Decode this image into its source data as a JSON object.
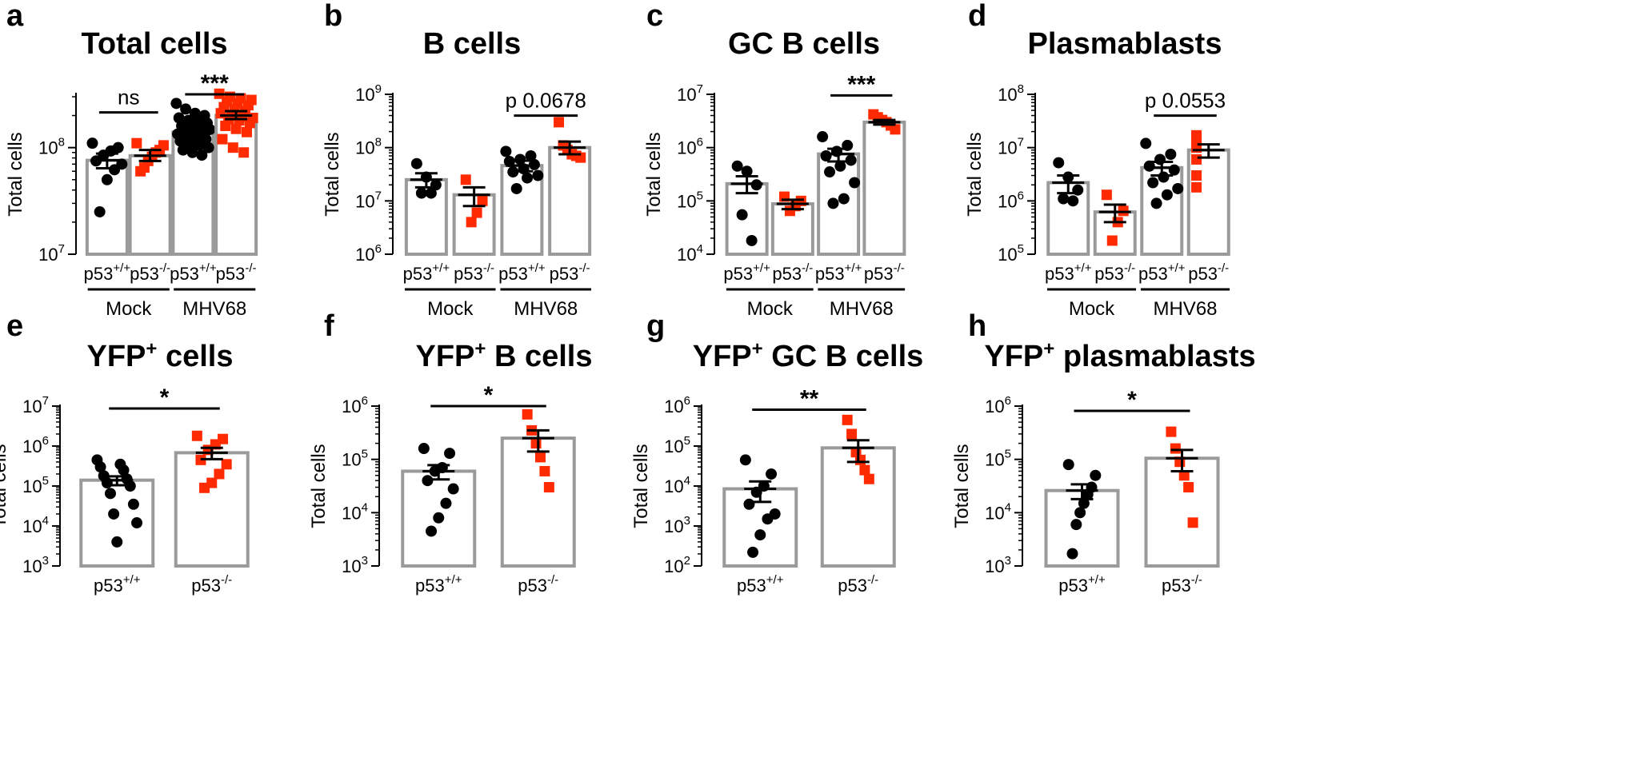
{
  "figure": {
    "x_label": "p53",
    "y_label": "Total cells"
  },
  "chart_data": [
    {
      "panel_letter": "a",
      "type": "bar",
      "title": "Total cells",
      "title_superscript": "",
      "title_rest": "",
      "ylabel": "Total cells",
      "yscale": "log",
      "ylim_exp": [
        7,
        8.5
      ],
      "y_ticks": [
        {
          "base": "10",
          "exp": "7",
          "value_exp": 7
        },
        {
          "base": "10",
          "exp": "8",
          "value_exp": 8
        }
      ],
      "categories": [
        {
          "base": "p53",
          "sup": "+/+",
          "group": "Mock",
          "color": "#000000",
          "shape": "circle",
          "mean": 76000000,
          "sem_low": 64000000,
          "sem_high": 88000000,
          "points": [
            110000000,
            100000000,
            93000000,
            85000000,
            75000000,
            70000000,
            62000000,
            50000000,
            25000000
          ]
        },
        {
          "base": "p53",
          "sup": "-/-",
          "group": "Mock",
          "color": "#ff2a00",
          "shape": "square",
          "mean": 84000000,
          "sem_low": 75000000,
          "sem_high": 95000000,
          "points": [
            110000000,
            105000000,
            95000000,
            90000000,
            82000000,
            75000000,
            65000000,
            60000000
          ]
        },
        {
          "base": "p53",
          "sup": "+/+",
          "group": "MHV68",
          "color": "#000000",
          "shape": "circle",
          "mean": 140000000,
          "sem_low": 130000000,
          "sem_high": 152000000,
          "points": [
            260000000,
            230000000,
            210000000,
            200000000,
            190000000,
            180000000,
            175000000,
            170000000,
            160000000,
            155000000,
            150000000,
            148000000,
            145000000,
            140000000,
            137000000,
            134000000,
            130000000,
            125000000,
            120000000,
            115000000,
            110000000,
            105000000,
            100000000,
            95000000,
            90000000,
            85000000
          ]
        },
        {
          "base": "p53",
          "sup": "-/-",
          "group": "MHV68",
          "color": "#ff2a00",
          "shape": "square",
          "mean": 200000000,
          "sem_low": 185000000,
          "sem_high": 220000000,
          "points": [
            320000000,
            300000000,
            290000000,
            280000000,
            270000000,
            260000000,
            250000000,
            240000000,
            230000000,
            220000000,
            210000000,
            200000000,
            195000000,
            190000000,
            185000000,
            180000000,
            170000000,
            160000000,
            150000000,
            140000000,
            120000000,
            100000000,
            90000000
          ]
        }
      ],
      "groups": [
        {
          "label": "Mock",
          "from": 0,
          "to": 1
        },
        {
          "label": "MHV68",
          "from": 2,
          "to": 3
        }
      ],
      "comparisons": [
        {
          "label": "ns",
          "from": 0,
          "to": 1,
          "level_exp": 8.33
        },
        {
          "label": "***",
          "from": 2,
          "to": 3,
          "level_exp": 8.5
        }
      ]
    },
    {
      "panel_letter": "b",
      "type": "bar",
      "title": "B cells",
      "title_superscript": "",
      "title_rest": "",
      "ylabel": "Total cells",
      "yscale": "log",
      "ylim_exp": [
        6,
        9
      ],
      "y_ticks": [
        {
          "base": "10",
          "exp": "6",
          "value_exp": 6
        },
        {
          "base": "10",
          "exp": "7",
          "value_exp": 7
        },
        {
          "base": "10",
          "exp": "8",
          "value_exp": 8
        },
        {
          "base": "10",
          "exp": "9",
          "value_exp": 9
        }
      ],
      "categories": [
        {
          "base": "p53",
          "sup": "+/+",
          "group": "Mock",
          "color": "#000000",
          "shape": "circle",
          "mean": 25000000,
          "sem_low": 18000000,
          "sem_high": 33000000,
          "points": [
            50000000,
            28000000,
            20000000,
            14000000,
            14000000
          ]
        },
        {
          "base": "p53",
          "sup": "-/-",
          "group": "Mock",
          "color": "#ff2a00",
          "shape": "square",
          "mean": 13000000,
          "sem_low": 8000000,
          "sem_high": 18000000,
          "points": [
            25000000,
            10000000,
            6000000,
            4000000
          ]
        },
        {
          "base": "p53",
          "sup": "+/+",
          "group": "MHV68",
          "color": "#000000",
          "shape": "circle",
          "mean": 46000000,
          "sem_low": 36000000,
          "sem_high": 57000000,
          "points": [
            85000000,
            70000000,
            60000000,
            55000000,
            48000000,
            40000000,
            35000000,
            30000000,
            27000000,
            17000000
          ]
        },
        {
          "base": "p53",
          "sup": "-/-",
          "group": "MHV68",
          "color": "#ff2a00",
          "shape": "square",
          "mean": 100000000,
          "sem_low": 75000000,
          "sem_high": 130000000,
          "points": [
            300000000,
            110000000,
            90000000,
            75000000,
            70000000,
            65000000
          ]
        }
      ],
      "groups": [
        {
          "label": "Mock",
          "from": 0,
          "to": 1
        },
        {
          "label": "MHV68",
          "from": 2,
          "to": 3
        }
      ],
      "comparisons": [
        {
          "label": "p 0.0678",
          "from": 2,
          "to": 3,
          "level_exp": 8.6
        }
      ]
    },
    {
      "panel_letter": "c",
      "type": "bar",
      "title": "GC B cells",
      "title_superscript": "",
      "title_rest": "",
      "ylabel": "Total cells",
      "yscale": "log",
      "ylim_exp": [
        4,
        7
      ],
      "y_ticks": [
        {
          "base": "10",
          "exp": "4",
          "value_exp": 4
        },
        {
          "base": "10",
          "exp": "5",
          "value_exp": 5
        },
        {
          "base": "10",
          "exp": "6",
          "value_exp": 6
        },
        {
          "base": "10",
          "exp": "7",
          "value_exp": 7
        }
      ],
      "categories": [
        {
          "base": "p53",
          "sup": "+/+",
          "group": "Mock",
          "color": "#000000",
          "shape": "circle",
          "mean": 210000,
          "sem_low": 140000,
          "sem_high": 290000,
          "points": [
            450000,
            360000,
            200000,
            55000,
            18000
          ]
        },
        {
          "base": "p53",
          "sup": "-/-",
          "group": "Mock",
          "color": "#ff2a00",
          "shape": "square",
          "mean": 88000,
          "sem_low": 70000,
          "sem_high": 105000,
          "points": [
            120000,
            100000,
            80000,
            65000
          ]
        },
        {
          "base": "p53",
          "sup": "+/+",
          "group": "MHV68",
          "color": "#000000",
          "shape": "circle",
          "mean": 760000,
          "sem_low": 550000,
          "sem_high": 950000,
          "points": [
            1600000,
            1100000,
            850000,
            700000,
            580000,
            450000,
            350000,
            220000,
            110000,
            90000
          ]
        },
        {
          "base": "p53",
          "sup": "-/-",
          "group": "MHV68",
          "color": "#ff2a00",
          "shape": "square",
          "mean": 3000000,
          "sem_low": 2700000,
          "sem_high": 3300000,
          "points": [
            4200000,
            3700000,
            3300000,
            3000000,
            2600000,
            2200000
          ]
        }
      ],
      "groups": [
        {
          "label": "Mock",
          "from": 0,
          "to": 1
        },
        {
          "label": "MHV68",
          "from": 2,
          "to": 3
        }
      ],
      "comparisons": [
        {
          "label": "***",
          "from": 2,
          "to": 3,
          "level_exp": 6.98
        }
      ]
    },
    {
      "panel_letter": "d",
      "type": "bar",
      "title": "Plasmablasts",
      "title_superscript": "",
      "title_rest": "",
      "ylabel": "Total cells",
      "yscale": "log",
      "ylim_exp": [
        5,
        8
      ],
      "y_ticks": [
        {
          "base": "10",
          "exp": "5",
          "value_exp": 5
        },
        {
          "base": "10",
          "exp": "6",
          "value_exp": 6
        },
        {
          "base": "10",
          "exp": "7",
          "value_exp": 7
        },
        {
          "base": "10",
          "exp": "8",
          "value_exp": 8
        }
      ],
      "categories": [
        {
          "base": "p53",
          "sup": "+/+",
          "group": "Mock",
          "color": "#000000",
          "shape": "circle",
          "mean": 2200000,
          "sem_low": 1400000,
          "sem_high": 3000000,
          "points": [
            5200000,
            2800000,
            1600000,
            1100000,
            1000000
          ]
        },
        {
          "base": "p53",
          "sup": "-/-",
          "group": "Mock",
          "color": "#ff2a00",
          "shape": "square",
          "mean": 620000,
          "sem_low": 400000,
          "sem_high": 850000,
          "points": [
            1300000,
            650000,
            400000,
            180000
          ]
        },
        {
          "base": "p53",
          "sup": "+/+",
          "group": "MHV68",
          "color": "#000000",
          "shape": "circle",
          "mean": 4200000,
          "sem_low": 3000000,
          "sem_high": 5400000,
          "points": [
            12000000,
            7500000,
            6000000,
            4500000,
            3800000,
            2800000,
            2200000,
            1700000,
            1300000,
            900000
          ]
        },
        {
          "base": "p53",
          "sup": "-/-",
          "group": "MHV68",
          "color": "#ff2a00",
          "shape": "square",
          "mean": 9000000,
          "sem_low": 6500000,
          "sem_high": 11500000,
          "points": [
            17000000,
            15000000,
            12000000,
            10000000,
            6000000,
            3000000,
            1800000
          ]
        }
      ],
      "groups": [
        {
          "label": "Mock",
          "from": 0,
          "to": 1
        },
        {
          "label": "MHV68",
          "from": 2,
          "to": 3
        }
      ],
      "comparisons": [
        {
          "label": "p 0.0553",
          "from": 2,
          "to": 3,
          "level_exp": 7.6
        }
      ]
    },
    {
      "panel_letter": "e",
      "type": "bar",
      "title": "YFP",
      "title_superscript": "+",
      "title_rest": " cells",
      "ylabel": "Total cells",
      "yscale": "log",
      "ylim_exp": [
        3,
        7
      ],
      "y_ticks": [
        {
          "base": "10",
          "exp": "3",
          "value_exp": 3
        },
        {
          "base": "10",
          "exp": "4",
          "value_exp": 4
        },
        {
          "base": "10",
          "exp": "5",
          "value_exp": 5
        },
        {
          "base": "10",
          "exp": "6",
          "value_exp": 6
        },
        {
          "base": "10",
          "exp": "7",
          "value_exp": 7
        }
      ],
      "categories": [
        {
          "base": "p53",
          "sup": "+/+",
          "group": "",
          "color": "#000000",
          "shape": "circle",
          "mean": 140000,
          "sem_low": 105000,
          "sem_high": 175000,
          "points": [
            450000,
            350000,
            300000,
            250000,
            180000,
            150000,
            120000,
            100000,
            65000,
            35000,
            20000,
            12000,
            4000
          ]
        },
        {
          "base": "p53",
          "sup": "-/-",
          "group": "",
          "color": "#ff2a00",
          "shape": "square",
          "mean": 680000,
          "sem_low": 470000,
          "sem_high": 900000,
          "points": [
            1800000,
            1500000,
            1100000,
            800000,
            450000,
            350000,
            200000,
            120000,
            90000
          ]
        }
      ],
      "groups": [],
      "comparisons": [
        {
          "label": "*",
          "from": 0,
          "to": 1,
          "level_exp": 6.94
        }
      ]
    },
    {
      "panel_letter": "f",
      "type": "bar",
      "title": "YFP",
      "title_superscript": "+",
      "title_rest": " B cells",
      "ylabel": "Total cells",
      "yscale": "log",
      "ylim_exp": [
        3,
        6
      ],
      "y_ticks": [
        {
          "base": "10",
          "exp": "3",
          "value_exp": 3
        },
        {
          "base": "10",
          "exp": "4",
          "value_exp": 4
        },
        {
          "base": "10",
          "exp": "5",
          "value_exp": 5
        },
        {
          "base": "10",
          "exp": "6",
          "value_exp": 6
        }
      ],
      "categories": [
        {
          "base": "p53",
          "sup": "+/+",
          "group": "",
          "color": "#000000",
          "shape": "circle",
          "mean": 60000,
          "sem_low": 42000,
          "sem_high": 78000,
          "points": [
            160000,
            130000,
            70000,
            60000,
            40000,
            28000,
            15000,
            8000,
            4500
          ]
        },
        {
          "base": "p53",
          "sup": "-/-",
          "group": "",
          "color": "#ff2a00",
          "shape": "square",
          "mean": 250000,
          "sem_low": 140000,
          "sem_high": 350000,
          "points": [
            700000,
            350000,
            200000,
            110000,
            60000,
            30000
          ]
        }
      ],
      "groups": [],
      "comparisons": [
        {
          "label": "*",
          "from": 0,
          "to": 1,
          "level_exp": 6.0
        }
      ]
    },
    {
      "panel_letter": "g",
      "type": "bar",
      "title": "YFP",
      "title_superscript": "+",
      "title_rest": " GC B cells",
      "ylabel": "Total cells",
      "yscale": "log",
      "ylim_exp": [
        2,
        6
      ],
      "y_ticks": [
        {
          "base": "10",
          "exp": "2",
          "value_exp": 2
        },
        {
          "base": "10",
          "exp": "3",
          "value_exp": 3
        },
        {
          "base": "10",
          "exp": "4",
          "value_exp": 4
        },
        {
          "base": "10",
          "exp": "5",
          "value_exp": 5
        },
        {
          "base": "10",
          "exp": "6",
          "value_exp": 6
        }
      ],
      "categories": [
        {
          "base": "p53",
          "sup": "+/+",
          "group": "",
          "color": "#000000",
          "shape": "circle",
          "mean": 8500,
          "sem_low": 4000,
          "sem_high": 13000,
          "points": [
            45000,
            20000,
            10000,
            7000,
            3500,
            2000,
            1500,
            600,
            220
          ]
        },
        {
          "base": "p53",
          "sup": "-/-",
          "group": "",
          "color": "#ff2a00",
          "shape": "square",
          "mean": 90000,
          "sem_low": 40000,
          "sem_high": 140000,
          "points": [
            450000,
            200000,
            70000,
            45000,
            25000,
            15000
          ]
        }
      ],
      "groups": [],
      "comparisons": [
        {
          "label": "**",
          "from": 0,
          "to": 1,
          "level_exp": 5.91
        }
      ]
    },
    {
      "panel_letter": "h",
      "type": "bar",
      "title": "YFP",
      "title_superscript": "+",
      "title_rest": " plasmablasts",
      "ylabel": "Total cells",
      "yscale": "log",
      "ylim_exp": [
        3,
        6
      ],
      "y_ticks": [
        {
          "base": "10",
          "exp": "3",
          "value_exp": 3
        },
        {
          "base": "10",
          "exp": "4",
          "value_exp": 4
        },
        {
          "base": "10",
          "exp": "5",
          "value_exp": 5
        },
        {
          "base": "10",
          "exp": "6",
          "value_exp": 6
        }
      ],
      "categories": [
        {
          "base": "p53",
          "sup": "+/+",
          "group": "",
          "color": "#000000",
          "shape": "circle",
          "mean": 26000,
          "sem_low": 18000,
          "sem_high": 34000,
          "points": [
            80000,
            50000,
            30000,
            22000,
            15000,
            10000,
            6000,
            1700
          ]
        },
        {
          "base": "p53",
          "sup": "-/-",
          "group": "",
          "color": "#ff2a00",
          "shape": "square",
          "mean": 105000,
          "sem_low": 60000,
          "sem_high": 150000,
          "points": [
            330000,
            160000,
            90000,
            50000,
            30000,
            6500
          ]
        }
      ],
      "groups": [],
      "comparisons": [
        {
          "label": "*",
          "from": 0,
          "to": 1,
          "level_exp": 5.91
        }
      ]
    }
  ]
}
